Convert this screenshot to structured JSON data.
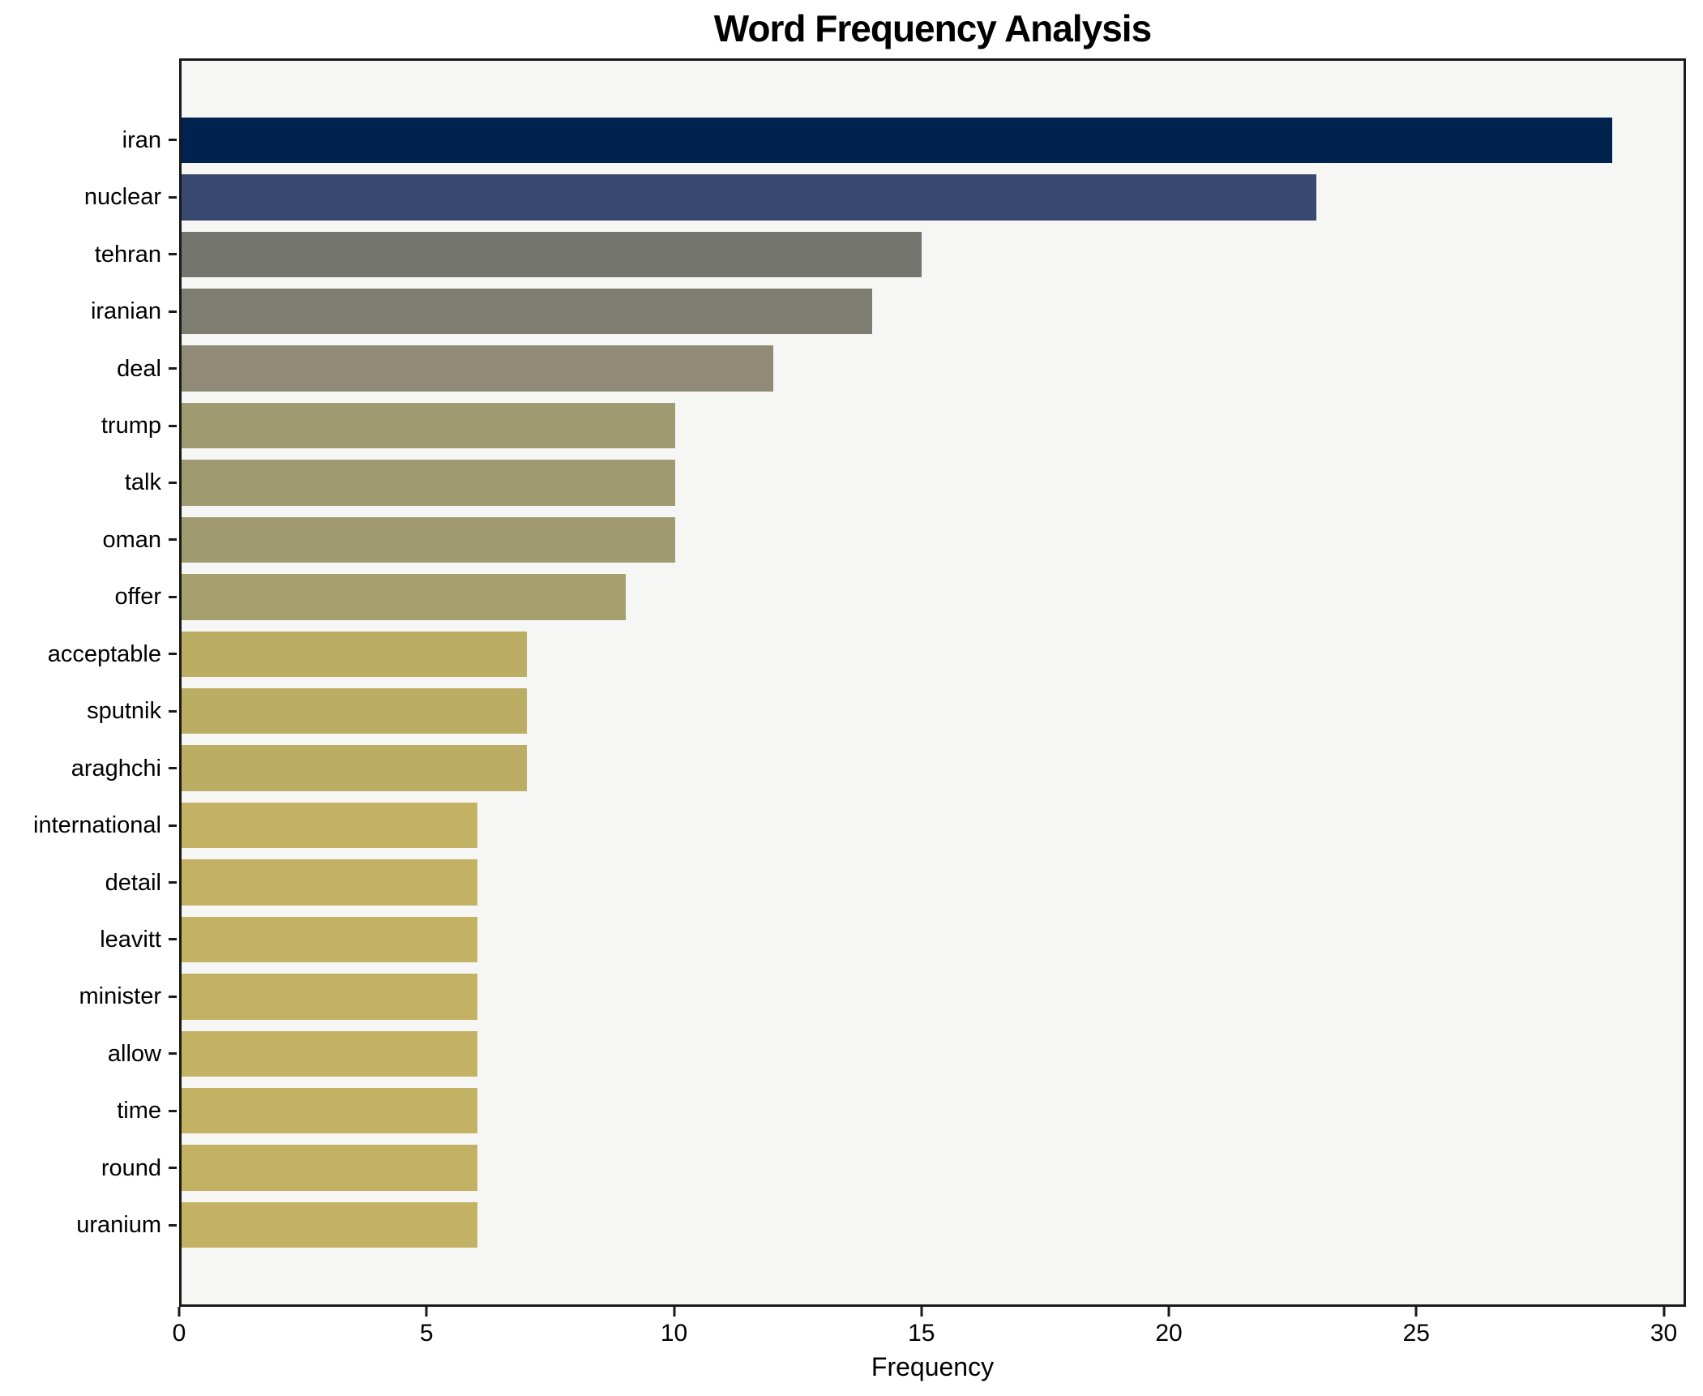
{
  "chart_data": {
    "type": "bar",
    "orientation": "horizontal",
    "title": "Word Frequency Analysis",
    "xlabel": "Frequency",
    "ylabel": "",
    "categories": [
      "iran",
      "nuclear",
      "tehran",
      "iranian",
      "deal",
      "trump",
      "talk",
      "oman",
      "offer",
      "acceptable",
      "sputnik",
      "araghchi",
      "international",
      "detail",
      "leavitt",
      "minister",
      "allow",
      "time",
      "round",
      "uranium"
    ],
    "values": [
      29,
      23,
      15,
      14,
      12,
      10,
      10,
      10,
      9,
      7,
      7,
      7,
      6,
      6,
      6,
      6,
      6,
      6,
      6,
      6
    ],
    "bar_colors": [
      "#00224e",
      "#38486f",
      "#757570",
      "#7e7d72",
      "#908a76",
      "#a09a71",
      "#a09a71",
      "#a09a71",
      "#a6a06e",
      "#bcad64",
      "#bcad64",
      "#bcad64",
      "#c3b264",
      "#c3b264",
      "#c3b264",
      "#c3b264",
      "#c3b264",
      "#c3b264",
      "#c3b264",
      "#c3b264"
    ],
    "xticks": [
      0,
      5,
      10,
      15,
      20,
      25,
      30
    ],
    "xlim": [
      0,
      30.45
    ],
    "grid": false,
    "legend": false,
    "colors": {
      "plot_background": "#f6f6f5",
      "figure_background": "#ffffff",
      "spine": "#1a1a1a",
      "text": "#000000"
    }
  }
}
